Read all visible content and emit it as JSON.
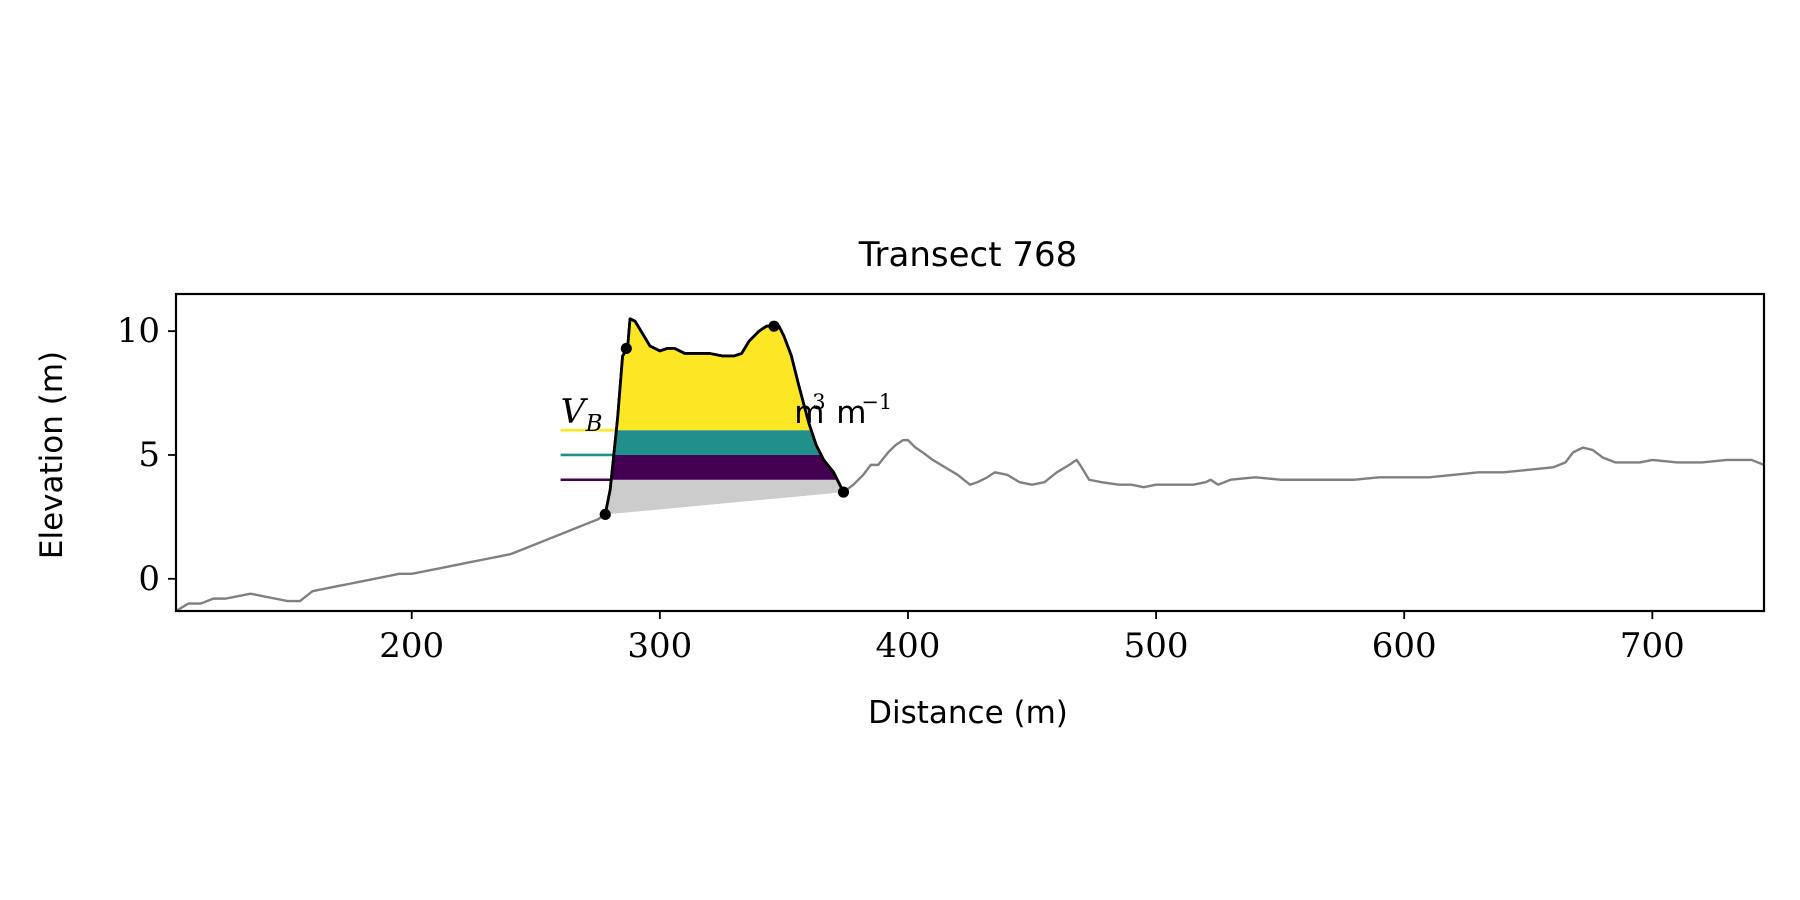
{
  "chart_data": {
    "type": "line",
    "title": "Transect 768",
    "xlabel": "Distance (m)",
    "ylabel": "Elevation (m)",
    "xlim": [
      105,
      745
    ],
    "ylim": [
      -1.3,
      11.5
    ],
    "xticks": [
      200,
      300,
      400,
      500,
      600,
      700
    ],
    "yticks": [
      0,
      5,
      10
    ],
    "grid": false,
    "legend": "none",
    "colors": {
      "profile": "#808080",
      "dune_outline": "#000000",
      "base_fill": "#cccccc",
      "band_low": "#440154",
      "band_mid": "#21908d",
      "band_high": "#fde725"
    },
    "profile": {
      "x": [
        105,
        110,
        115,
        120,
        125,
        130,
        135,
        140,
        145,
        150,
        155,
        160,
        165,
        170,
        175,
        180,
        185,
        190,
        195,
        200,
        205,
        210,
        215,
        220,
        225,
        230,
        235,
        240,
        245,
        250,
        255,
        260,
        265,
        270,
        275,
        278,
        280,
        283,
        285,
        287,
        288,
        290,
        293,
        296,
        300,
        303,
        306,
        310,
        315,
        320,
        325,
        330,
        333,
        336,
        340,
        343,
        346,
        348,
        350,
        353,
        356,
        360,
        363,
        366,
        370,
        374,
        378,
        382,
        385,
        388,
        392,
        395,
        398,
        400,
        403,
        406,
        410,
        415,
        420,
        425,
        428,
        432,
        435,
        440,
        445,
        450,
        455,
        460,
        465,
        468,
        470,
        473,
        478,
        485,
        490,
        495,
        500,
        510,
        515,
        520,
        522,
        525,
        530,
        540,
        550,
        560,
        570,
        580,
        590,
        600,
        610,
        620,
        630,
        640,
        650,
        660,
        665,
        668,
        672,
        676,
        680,
        685,
        690,
        695,
        700,
        710,
        720,
        730,
        740,
        745
      ],
      "y": [
        -1.3,
        -1.0,
        -1.0,
        -0.8,
        -0.8,
        -0.7,
        -0.6,
        -0.7,
        -0.8,
        -0.9,
        -0.9,
        -0.5,
        -0.4,
        -0.3,
        -0.2,
        -0.1,
        0.0,
        0.1,
        0.2,
        0.2,
        0.3,
        0.4,
        0.5,
        0.6,
        0.7,
        0.8,
        0.9,
        1.0,
        1.2,
        1.4,
        1.6,
        1.8,
        2.0,
        2.2,
        2.4,
        2.6,
        3.6,
        6.5,
        9.0,
        9.3,
        10.5,
        10.4,
        9.9,
        9.4,
        9.2,
        9.3,
        9.3,
        9.1,
        9.1,
        9.1,
        9.0,
        9.0,
        9.1,
        9.6,
        10.0,
        10.2,
        10.2,
        10.2,
        9.8,
        9.0,
        7.8,
        6.3,
        5.4,
        4.8,
        4.3,
        3.5,
        3.8,
        4.2,
        4.6,
        4.6,
        5.1,
        5.4,
        5.6,
        5.6,
        5.3,
        5.1,
        4.8,
        4.5,
        4.2,
        3.8,
        3.9,
        4.1,
        4.3,
        4.2,
        3.9,
        3.8,
        3.9,
        4.3,
        4.6,
        4.8,
        4.5,
        4.0,
        3.9,
        3.8,
        3.8,
        3.7,
        3.8,
        3.8,
        3.8,
        3.9,
        4.0,
        3.8,
        4.0,
        4.1,
        4.0,
        4.0,
        4.0,
        4.0,
        4.1,
        4.1,
        4.1,
        4.2,
        4.3,
        4.3,
        4.4,
        4.5,
        4.7,
        5.1,
        5.3,
        5.2,
        4.9,
        4.7,
        4.7,
        4.7,
        4.8,
        4.7,
        4.7,
        4.8,
        4.8,
        4.6
      ]
    },
    "dune": {
      "x": [
        278,
        280,
        283,
        285,
        287,
        288,
        290,
        293,
        296,
        300,
        303,
        306,
        310,
        315,
        320,
        325,
        330,
        333,
        336,
        340,
        343,
        346,
        348,
        350,
        353,
        356,
        360,
        363,
        366,
        370,
        374
      ],
      "y": [
        2.6,
        3.6,
        6.5,
        9.0,
        9.3,
        10.5,
        10.4,
        9.9,
        9.4,
        9.2,
        9.3,
        9.3,
        9.1,
        9.1,
        9.1,
        9.0,
        9.0,
        9.1,
        9.6,
        10.0,
        10.2,
        10.2,
        10.2,
        9.8,
        9.0,
        7.8,
        6.3,
        5.4,
        4.8,
        4.3,
        3.5
      ]
    },
    "key_points": [
      {
        "x": 278,
        "y": 2.6
      },
      {
        "x": 286.5,
        "y": 9.3
      },
      {
        "x": 346,
        "y": 10.2
      },
      {
        "x": 374,
        "y": 3.5
      }
    ],
    "levels": [
      {
        "y_bottom": 4.0,
        "y_top": 5.0,
        "color": "band_low"
      },
      {
        "y_bottom": 5.0,
        "y_top": 6.0,
        "color": "band_mid"
      },
      {
        "y_bottom": 6.0,
        "y_top": 11.0,
        "color": "band_high"
      }
    ],
    "legend_lines": [
      {
        "y": 4.0,
        "x_from": 260,
        "color": "band_low"
      },
      {
        "y": 5.0,
        "x_from": 260,
        "color": "band_mid"
      },
      {
        "y": 6.0,
        "x_from": 260,
        "color": "band_high"
      }
    ],
    "annotation": {
      "x": 260,
      "y": 6.3,
      "math": "V",
      "sub": "B",
      "unit_a": "m",
      "unit_sup": "3",
      "unit_b": "m",
      "unit_sup2": "−1"
    }
  }
}
